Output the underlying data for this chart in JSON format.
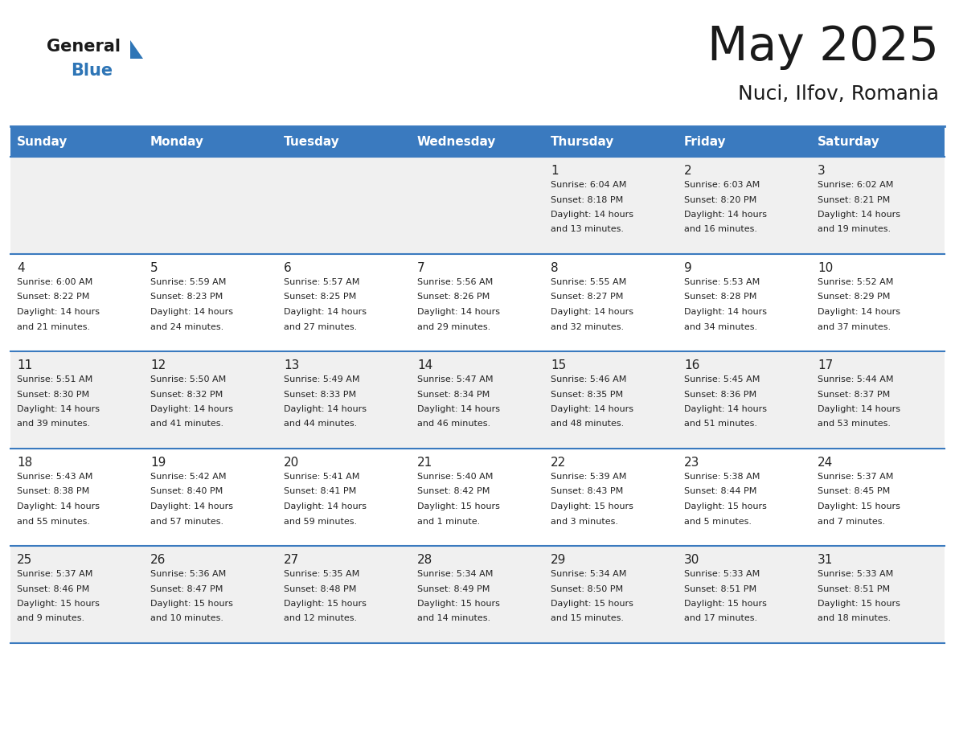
{
  "title": "May 2025",
  "subtitle": "Nuci, Ilfov, Romania",
  "days_of_week": [
    "Sunday",
    "Monday",
    "Tuesday",
    "Wednesday",
    "Thursday",
    "Friday",
    "Saturday"
  ],
  "header_bg": "#3a7abf",
  "header_text": "#ffffff",
  "row_bg_odd": "#f0f0f0",
  "row_bg_even": "#ffffff",
  "day_num_color": "#222222",
  "cell_text_color": "#222222",
  "separator_color": "#3a7abf",
  "logo_general_color": "#1a1a1a",
  "logo_blue_color": "#2e75b6",
  "calendar": [
    [
      {
        "day": "",
        "sunrise": "",
        "sunset": "",
        "daylight": ""
      },
      {
        "day": "",
        "sunrise": "",
        "sunset": "",
        "daylight": ""
      },
      {
        "day": "",
        "sunrise": "",
        "sunset": "",
        "daylight": ""
      },
      {
        "day": "",
        "sunrise": "",
        "sunset": "",
        "daylight": ""
      },
      {
        "day": "1",
        "sunrise": "6:04 AM",
        "sunset": "8:18 PM",
        "daylight": "14 hours and 13 minutes."
      },
      {
        "day": "2",
        "sunrise": "6:03 AM",
        "sunset": "8:20 PM",
        "daylight": "14 hours and 16 minutes."
      },
      {
        "day": "3",
        "sunrise": "6:02 AM",
        "sunset": "8:21 PM",
        "daylight": "14 hours and 19 minutes."
      }
    ],
    [
      {
        "day": "4",
        "sunrise": "6:00 AM",
        "sunset": "8:22 PM",
        "daylight": "14 hours and 21 minutes."
      },
      {
        "day": "5",
        "sunrise": "5:59 AM",
        "sunset": "8:23 PM",
        "daylight": "14 hours and 24 minutes."
      },
      {
        "day": "6",
        "sunrise": "5:57 AM",
        "sunset": "8:25 PM",
        "daylight": "14 hours and 27 minutes."
      },
      {
        "day": "7",
        "sunrise": "5:56 AM",
        "sunset": "8:26 PM",
        "daylight": "14 hours and 29 minutes."
      },
      {
        "day": "8",
        "sunrise": "5:55 AM",
        "sunset": "8:27 PM",
        "daylight": "14 hours and 32 minutes."
      },
      {
        "day": "9",
        "sunrise": "5:53 AM",
        "sunset": "8:28 PM",
        "daylight": "14 hours and 34 minutes."
      },
      {
        "day": "10",
        "sunrise": "5:52 AM",
        "sunset": "8:29 PM",
        "daylight": "14 hours and 37 minutes."
      }
    ],
    [
      {
        "day": "11",
        "sunrise": "5:51 AM",
        "sunset": "8:30 PM",
        "daylight": "14 hours and 39 minutes."
      },
      {
        "day": "12",
        "sunrise": "5:50 AM",
        "sunset": "8:32 PM",
        "daylight": "14 hours and 41 minutes."
      },
      {
        "day": "13",
        "sunrise": "5:49 AM",
        "sunset": "8:33 PM",
        "daylight": "14 hours and 44 minutes."
      },
      {
        "day": "14",
        "sunrise": "5:47 AM",
        "sunset": "8:34 PM",
        "daylight": "14 hours and 46 minutes."
      },
      {
        "day": "15",
        "sunrise": "5:46 AM",
        "sunset": "8:35 PM",
        "daylight": "14 hours and 48 minutes."
      },
      {
        "day": "16",
        "sunrise": "5:45 AM",
        "sunset": "8:36 PM",
        "daylight": "14 hours and 51 minutes."
      },
      {
        "day": "17",
        "sunrise": "5:44 AM",
        "sunset": "8:37 PM",
        "daylight": "14 hours and 53 minutes."
      }
    ],
    [
      {
        "day": "18",
        "sunrise": "5:43 AM",
        "sunset": "8:38 PM",
        "daylight": "14 hours and 55 minutes."
      },
      {
        "day": "19",
        "sunrise": "5:42 AM",
        "sunset": "8:40 PM",
        "daylight": "14 hours and 57 minutes."
      },
      {
        "day": "20",
        "sunrise": "5:41 AM",
        "sunset": "8:41 PM",
        "daylight": "14 hours and 59 minutes."
      },
      {
        "day": "21",
        "sunrise": "5:40 AM",
        "sunset": "8:42 PM",
        "daylight": "15 hours and 1 minute."
      },
      {
        "day": "22",
        "sunrise": "5:39 AM",
        "sunset": "8:43 PM",
        "daylight": "15 hours and 3 minutes."
      },
      {
        "day": "23",
        "sunrise": "5:38 AM",
        "sunset": "8:44 PM",
        "daylight": "15 hours and 5 minutes."
      },
      {
        "day": "24",
        "sunrise": "5:37 AM",
        "sunset": "8:45 PM",
        "daylight": "15 hours and 7 minutes."
      }
    ],
    [
      {
        "day": "25",
        "sunrise": "5:37 AM",
        "sunset": "8:46 PM",
        "daylight": "15 hours and 9 minutes."
      },
      {
        "day": "26",
        "sunrise": "5:36 AM",
        "sunset": "8:47 PM",
        "daylight": "15 hours and 10 minutes."
      },
      {
        "day": "27",
        "sunrise": "5:35 AM",
        "sunset": "8:48 PM",
        "daylight": "15 hours and 12 minutes."
      },
      {
        "day": "28",
        "sunrise": "5:34 AM",
        "sunset": "8:49 PM",
        "daylight": "15 hours and 14 minutes."
      },
      {
        "day": "29",
        "sunrise": "5:34 AM",
        "sunset": "8:50 PM",
        "daylight": "15 hours and 15 minutes."
      },
      {
        "day": "30",
        "sunrise": "5:33 AM",
        "sunset": "8:51 PM",
        "daylight": "15 hours and 17 minutes."
      },
      {
        "day": "31",
        "sunrise": "5:33 AM",
        "sunset": "8:51 PM",
        "daylight": "15 hours and 18 minutes."
      }
    ]
  ]
}
